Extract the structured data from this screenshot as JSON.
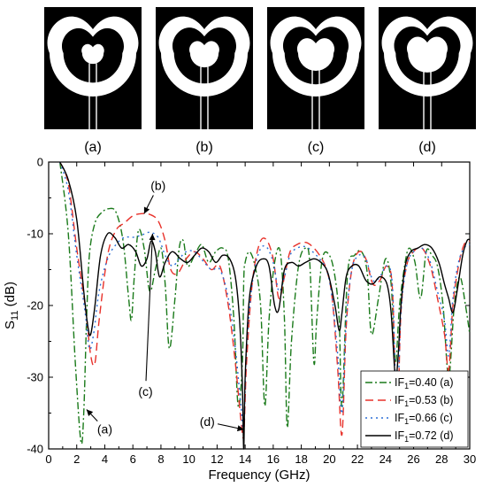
{
  "panels": [
    {
      "caption": "(a)",
      "ratio": 0.4
    },
    {
      "caption": "(b)",
      "ratio": 0.53
    },
    {
      "caption": "(c)",
      "ratio": 0.66
    },
    {
      "caption": "(d)",
      "ratio": 0.72
    }
  ],
  "chart_data": {
    "type": "line",
    "xlabel": "Frequency (GHz)",
    "ylabel_main": "S",
    "ylabel_sub": "11",
    "ylabel_tail": " (dB)",
    "xlim": [
      0,
      30
    ],
    "ylim": [
      -40,
      0
    ],
    "x_ticks": [
      0,
      2,
      4,
      6,
      8,
      10,
      12,
      14,
      16,
      18,
      20,
      22,
      24,
      26,
      28,
      30
    ],
    "y_ticks": [
      0,
      -10,
      -20,
      -30,
      -40
    ],
    "grid": false,
    "legend_position": "bottom-right",
    "series": [
      {
        "name_main": "IF",
        "name_sub": "1",
        "name_tail": "=0.40 (a)",
        "color": "#1a7a1a",
        "dash": "8,3,2,3",
        "x": [
          0.8,
          1.4,
          1.9,
          2.3,
          2.5,
          2.7,
          2.9,
          3.3,
          3.8,
          4.3,
          4.8,
          5.3,
          5.7,
          5.9,
          6.1,
          6.4,
          6.8,
          7.2,
          7.6,
          8.0,
          8.3,
          8.6,
          9.0,
          9.3,
          9.6,
          9.9,
          10.4,
          10.9,
          11.4,
          11.9,
          12.4,
          12.8,
          13.2,
          13.5,
          13.8,
          13.9,
          14.0,
          14.3,
          14.7,
          15.1,
          15.4,
          15.7,
          16.1,
          16.5,
          16.8,
          17.0,
          17.3,
          17.8,
          18.3,
          18.6,
          18.9,
          19.1,
          19.5,
          20.0,
          20.4,
          20.7,
          20.9,
          21.3,
          21.8,
          22.3,
          22.7,
          23.0,
          23.5,
          24.0,
          24.4,
          24.7,
          25.0,
          25.4,
          25.7,
          26.1,
          26.5,
          26.9,
          27.3,
          27.7,
          28.1,
          28.5,
          28.9,
          29.3,
          29.7,
          30.0
        ],
        "y": [
          0,
          -10,
          -28,
          -39,
          -35,
          -22,
          -13,
          -8.5,
          -7,
          -6.5,
          -7,
          -11,
          -19,
          -22,
          -16,
          -9.5,
          -12,
          -18,
          -15,
          -12,
          -17,
          -26,
          -19,
          -12,
          -11,
          -14.5,
          -13,
          -11.5,
          -14,
          -12.5,
          -12,
          -13.5,
          -22,
          -34,
          -28,
          -16.5,
          -14,
          -12.5,
          -14.5,
          -20,
          -34,
          -22,
          -14,
          -12.5,
          -22,
          -37,
          -25,
          -14.5,
          -12,
          -14,
          -28,
          -22,
          -13.5,
          -13,
          -16,
          -22,
          -34,
          -15.5,
          -13,
          -12.5,
          -15.5,
          -24,
          -19,
          -13.5,
          -17,
          -28,
          -20,
          -14,
          -12,
          -14,
          -19,
          -12.5,
          -13,
          -14.5,
          -20,
          -30,
          -20,
          -16,
          -20,
          -24
        ]
      },
      {
        "name_main": "IF",
        "name_sub": "1",
        "name_tail": "=0.53 (b)",
        "color": "#e8312a",
        "dash": "9,5",
        "x": [
          0.8,
          1.4,
          2.0,
          2.6,
          3.0,
          3.3,
          3.6,
          4.2,
          4.8,
          5.4,
          6.0,
          6.6,
          7.2,
          7.8,
          8.3,
          8.7,
          9.2,
          9.8,
          10.4,
          11.0,
          11.6,
          12.2,
          12.8,
          13.3,
          13.7,
          13.9,
          14.1,
          14.5,
          15.0,
          15.5,
          16.0,
          16.4,
          16.8,
          17.2,
          17.7,
          18.3,
          18.8,
          19.3,
          19.8,
          20.2,
          20.6,
          20.9,
          21.2,
          21.6,
          22.1,
          22.6,
          23.1,
          23.6,
          24.1,
          24.5,
          24.8,
          25.1,
          25.5,
          26.0,
          26.6,
          27.2,
          27.7,
          28.2,
          28.5,
          28.8,
          29.2,
          29.6,
          30.0
        ],
        "y": [
          0,
          -3,
          -12,
          -20,
          -27,
          -28,
          -22,
          -13,
          -9.5,
          -8.5,
          -7.5,
          -7.2,
          -7.3,
          -8.2,
          -11,
          -15,
          -15.5,
          -13.5,
          -12.5,
          -13.5,
          -15,
          -14.5,
          -20,
          -28,
          -36,
          -38,
          -28,
          -17,
          -11.5,
          -10.8,
          -13.5,
          -19,
          -16,
          -12.5,
          -11.5,
          -11.2,
          -11.8,
          -13,
          -15,
          -19,
          -29,
          -38,
          -23,
          -15,
          -12.5,
          -13.5,
          -17,
          -16.5,
          -14.5,
          -18,
          -38,
          -21,
          -14.5,
          -12.5,
          -12,
          -14.5,
          -19,
          -24,
          -29,
          -20,
          -14.5,
          -11.5,
          -11
        ]
      },
      {
        "name_main": "IF",
        "name_sub": "1",
        "name_tail": "=0.66 (c)",
        "color": "#2a6fd6",
        "dash": "2,4",
        "x": [
          0.8,
          1.4,
          2.0,
          2.6,
          2.9,
          3.2,
          3.6,
          4.2,
          4.8,
          5.4,
          6.0,
          6.6,
          7.2,
          7.8,
          8.3,
          8.8,
          9.3,
          9.8,
          10.4,
          11.0,
          11.6,
          12.2,
          12.8,
          13.3,
          13.7,
          13.9,
          14.1,
          14.5,
          15.0,
          15.5,
          16.0,
          16.4,
          16.8,
          17.2,
          17.7,
          18.3,
          18.8,
          19.3,
          19.8,
          20.2,
          20.6,
          20.9,
          21.2,
          21.6,
          22.1,
          22.6,
          23.1,
          23.6,
          24.1,
          24.5,
          24.8,
          25.1,
          25.5,
          26.0,
          26.6,
          27.2,
          27.7,
          28.2,
          28.5,
          28.8,
          29.2,
          29.6,
          30.0
        ],
        "y": [
          0,
          -4,
          -13,
          -21,
          -26,
          -24,
          -18,
          -13.5,
          -11.5,
          -10.5,
          -10.5,
          -10.2,
          -9.8,
          -10.5,
          -13,
          -14.5,
          -13.5,
          -12.5,
          -12.5,
          -13.8,
          -15,
          -15,
          -19,
          -26,
          -34,
          -37,
          -26,
          -17,
          -12.5,
          -11.8,
          -14,
          -18,
          -16,
          -13,
          -12,
          -11.8,
          -12.5,
          -13.5,
          -15,
          -19,
          -27,
          -35,
          -22,
          -15,
          -13,
          -13.5,
          -16.5,
          -16,
          -14.5,
          -17.5,
          -35,
          -21,
          -14.5,
          -12.5,
          -12,
          -14,
          -18,
          -22,
          -27,
          -19,
          -14,
          -12,
          -11.5
        ]
      },
      {
        "name_main": "IF",
        "name_sub": "1",
        "name_tail": "=0.72 (d)",
        "color": "#000000",
        "dash": "",
        "x": [
          0.8,
          1.4,
          2.0,
          2.5,
          2.8,
          3.0,
          3.3,
          3.7,
          4.2,
          4.7,
          5.2,
          5.7,
          6.2,
          6.6,
          7.0,
          7.3,
          7.6,
          7.9,
          8.3,
          8.8,
          9.4,
          9.9,
          10.4,
          10.9,
          11.4,
          11.9,
          12.4,
          12.9,
          13.3,
          13.6,
          13.8,
          13.9,
          14.0,
          14.3,
          14.8,
          15.3,
          15.7,
          16.1,
          16.4,
          16.8,
          17.3,
          17.8,
          18.3,
          18.9,
          19.4,
          19.9,
          20.4,
          20.7,
          20.9,
          21.2,
          21.6,
          22.1,
          22.6,
          23.1,
          23.6,
          24.1,
          24.4,
          24.7,
          24.9,
          25.1,
          25.4,
          25.8,
          26.3,
          26.8,
          27.3,
          27.8,
          28.2,
          28.5,
          28.8,
          29.1,
          29.5,
          29.8,
          30.0
        ],
        "y": [
          0,
          -2.5,
          -8,
          -18,
          -23,
          -24,
          -20,
          -13,
          -10,
          -10.5,
          -12,
          -11.5,
          -12.5,
          -14.5,
          -13.5,
          -11,
          -12.5,
          -16,
          -14,
          -12.5,
          -13.5,
          -14,
          -13,
          -12,
          -12.5,
          -14,
          -13,
          -13.5,
          -16,
          -22,
          -31,
          -40,
          -30,
          -19,
          -14.5,
          -13.5,
          -14.5,
          -20,
          -20.5,
          -15,
          -14,
          -14.5,
          -14,
          -13.5,
          -14,
          -15.5,
          -20,
          -23.5,
          -21,
          -16,
          -14.5,
          -14.5,
          -16.5,
          -17,
          -16,
          -17,
          -21,
          -30,
          -27,
          -20,
          -14.5,
          -12.5,
          -12,
          -11.5,
          -12,
          -14,
          -17,
          -19,
          -21,
          -18,
          -13,
          -11,
          -10.8
        ]
      }
    ],
    "annotations": [
      {
        "label": "(b)",
        "label_x": 7.8,
        "label_y": -3.3,
        "tip_x": 6.8,
        "tip_y": -7.2
      },
      {
        "label": "(c)",
        "label_x": 6.9,
        "label_y": -32.0,
        "tip_x": 7.4,
        "tip_y": -10.0
      },
      {
        "label": "(a)",
        "label_x": 4.0,
        "label_y": -37.2,
        "tip_x": 2.7,
        "tip_y": -34.5
      },
      {
        "label": "(d)",
        "label_x": 11.3,
        "label_y": -36.2,
        "tip_x": 13.9,
        "tip_y": -37.3
      }
    ]
  }
}
